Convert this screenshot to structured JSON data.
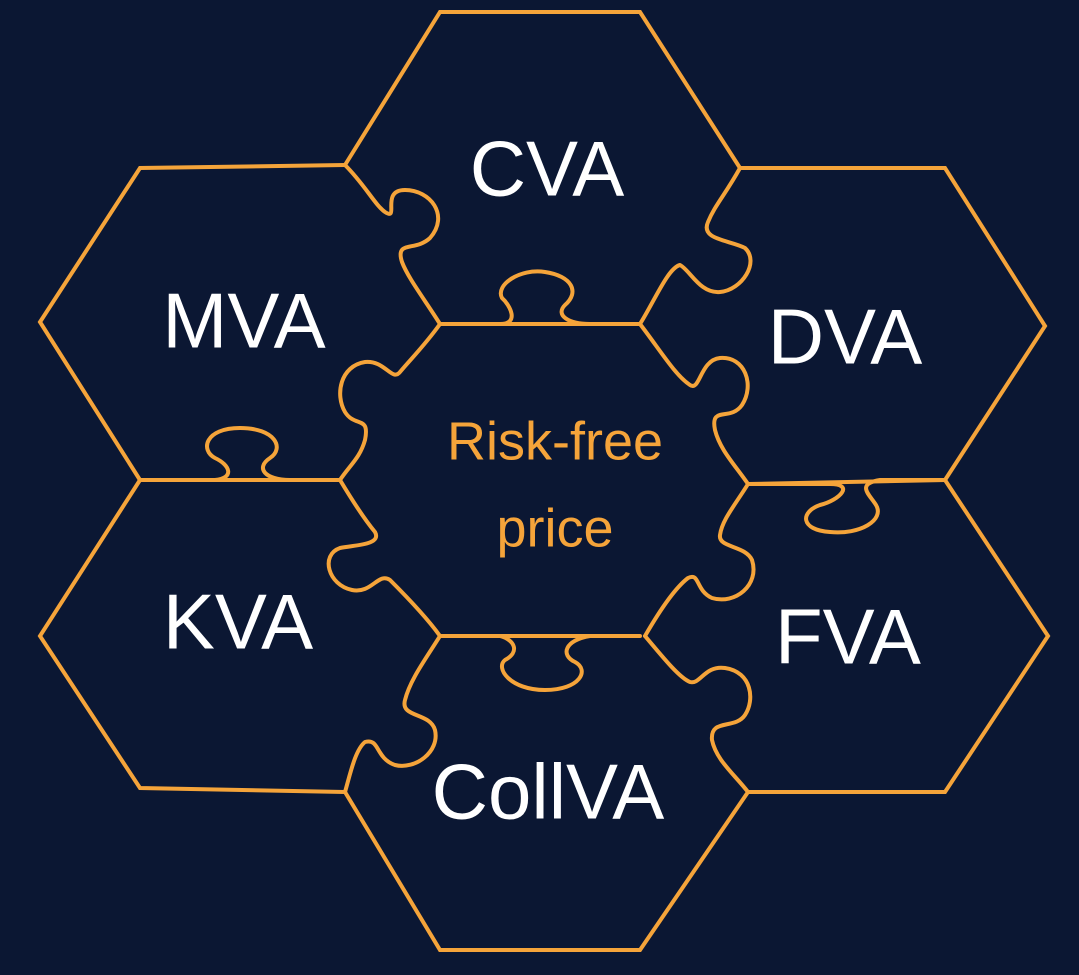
{
  "colors": {
    "background": "#0b1733",
    "outline": "#f5a43a",
    "outer_text": "#ffffff",
    "center_text": "#f5a43a"
  },
  "center": {
    "line1": "Risk-free",
    "line2": "price"
  },
  "pieces": {
    "top": "CVA",
    "upper_right": "DVA",
    "lower_right": "FVA",
    "bottom": "CollVA",
    "lower_left": "KVA",
    "upper_left": "MVA"
  }
}
